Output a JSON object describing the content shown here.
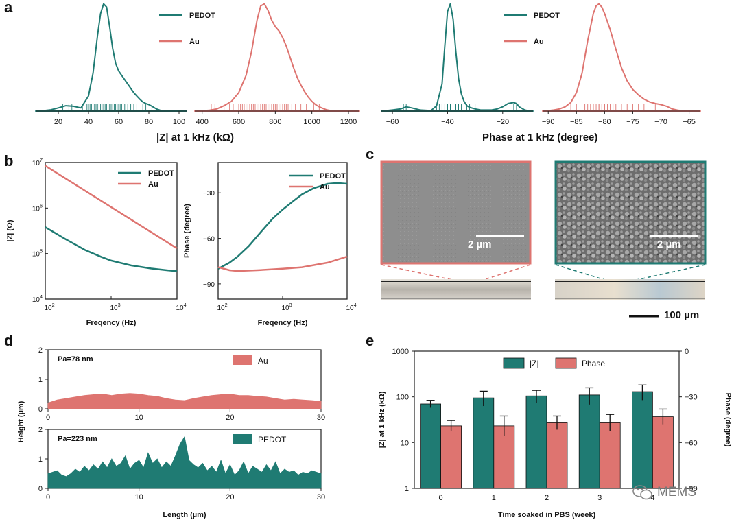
{
  "panels": {
    "a": "a",
    "b": "b",
    "c": "c",
    "d": "d",
    "e": "e"
  },
  "colors": {
    "pedot": "#1f7b73",
    "au": "#de7470",
    "text": "#111111",
    "axis": "#222222"
  },
  "legend": {
    "pedot": "PEDOT",
    "au": "Au",
    "z": "|Z|",
    "phase": "Phase"
  },
  "watermark": "MEMS",
  "chart_data": [
    {
      "id": "a_z_pedot",
      "type": "area",
      "note": "density distribution (kernel density, rug plot beneath)",
      "xlim": [
        5,
        105
      ],
      "xticks": [
        20,
        40,
        60,
        80,
        100
      ],
      "x": [
        5,
        10,
        15,
        20,
        25,
        30,
        35,
        40,
        43,
        46,
        48,
        50,
        52,
        54,
        56,
        58,
        60,
        62,
        64,
        66,
        68,
        70,
        72,
        74,
        76,
        78,
        80,
        82,
        85,
        88,
        90,
        95,
        100,
        105
      ],
      "y": [
        0,
        0.004,
        0.012,
        0.03,
        0.05,
        0.045,
        0.03,
        0.14,
        0.35,
        0.7,
        0.9,
        0.99,
        0.96,
        0.78,
        0.58,
        0.44,
        0.37,
        0.33,
        0.29,
        0.25,
        0.21,
        0.17,
        0.14,
        0.11,
        0.085,
        0.07,
        0.06,
        0.045,
        0.02,
        0.005,
        0.002,
        0,
        0,
        0
      ],
      "rug": [
        23,
        27,
        29,
        36,
        39,
        40,
        41,
        42,
        43,
        44,
        45,
        46,
        47,
        48,
        49,
        50,
        51,
        52,
        53,
        54,
        55,
        56,
        57,
        58,
        59,
        60,
        61,
        62,
        64,
        66,
        68,
        70,
        72,
        76,
        78,
        82
      ]
    },
    {
      "id": "a_z_au",
      "type": "area",
      "xlim": [
        360,
        1260
      ],
      "xticks": [
        400,
        600,
        800,
        1000,
        1200
      ],
      "x": [
        360,
        400,
        440,
        480,
        520,
        560,
        600,
        640,
        670,
        700,
        720,
        740,
        760,
        780,
        800,
        820,
        840,
        860,
        880,
        900,
        920,
        940,
        960,
        980,
        1000,
        1020,
        1040,
        1060,
        1080,
        1100,
        1140,
        1180,
        1220,
        1260
      ],
      "y": [
        0,
        0.003,
        0.008,
        0.02,
        0.05,
        0.09,
        0.17,
        0.33,
        0.55,
        0.84,
        0.97,
        0.99,
        0.93,
        0.84,
        0.78,
        0.74,
        0.68,
        0.6,
        0.5,
        0.4,
        0.31,
        0.24,
        0.18,
        0.13,
        0.09,
        0.06,
        0.04,
        0.025,
        0.012,
        0.006,
        0.002,
        0,
        0,
        0
      ],
      "rug": [
        450,
        470,
        520,
        550,
        570,
        600,
        610,
        620,
        630,
        640,
        650,
        660,
        670,
        680,
        690,
        700,
        710,
        720,
        730,
        740,
        750,
        760,
        770,
        780,
        790,
        800,
        810,
        820,
        830,
        840,
        850,
        860,
        870,
        890,
        910,
        940,
        970,
        1010,
        1040
      ]
    },
    {
      "id": "a_ph_pedot",
      "type": "area",
      "xlim": [
        -64,
        -9
      ],
      "xticks": [
        -60,
        -40,
        -20
      ],
      "x": [
        -64,
        -60,
        -57,
        -55,
        -53,
        -50,
        -46,
        -44,
        -42,
        -41,
        -40,
        -39,
        -38,
        -37,
        -36,
        -35,
        -34,
        -33,
        -32,
        -30,
        -28,
        -26,
        -24,
        -22,
        -20,
        -18,
        -16,
        -15,
        -14,
        -12,
        -10,
        -9
      ],
      "y": [
        0,
        0.01,
        0.02,
        0.04,
        0.03,
        0.01,
        0.005,
        0.05,
        0.25,
        0.6,
        0.92,
        0.99,
        0.85,
        0.55,
        0.3,
        0.16,
        0.09,
        0.05,
        0.035,
        0.02,
        0.01,
        0.01,
        0.01,
        0.02,
        0.04,
        0.07,
        0.08,
        0.07,
        0.04,
        0.01,
        0,
        0
      ],
      "rug": [
        -56,
        -55,
        -44,
        -43,
        -42,
        -41,
        -41,
        -40,
        -40,
        -39,
        -39,
        -38,
        -38,
        -37,
        -37,
        -36,
        -36,
        -35,
        -34,
        -33,
        -32,
        -30,
        -16,
        -15
      ]
    },
    {
      "id": "a_ph_au",
      "type": "area",
      "xlim": [
        -91,
        -63
      ],
      "xticks": [
        -90,
        -85,
        -80,
        -75,
        -70,
        -65
      ],
      "x": [
        -91,
        -90,
        -89,
        -88,
        -87,
        -86,
        -85,
        -84,
        -83,
        -82,
        -81.5,
        -81,
        -80.5,
        -80,
        -79,
        -78,
        -77,
        -76,
        -75,
        -74,
        -73,
        -72,
        -71,
        -70,
        -69,
        -68,
        -67,
        -66,
        -65,
        -63
      ],
      "y": [
        0,
        0.004,
        0.01,
        0.02,
        0.04,
        0.08,
        0.17,
        0.35,
        0.65,
        0.9,
        0.97,
        0.99,
        0.96,
        0.9,
        0.75,
        0.57,
        0.4,
        0.28,
        0.2,
        0.15,
        0.11,
        0.085,
        0.07,
        0.06,
        0.045,
        0.02,
        0.008,
        0.003,
        0,
        0
      ],
      "rug": [
        -86,
        -85,
        -84,
        -84,
        -83.5,
        -83,
        -82.5,
        -82,
        -82,
        -81.5,
        -81,
        -81,
        -80.5,
        -80,
        -80,
        -79.5,
        -79,
        -78.5,
        -78,
        -77,
        -76,
        -75,
        -74,
        -73,
        -71,
        -70
      ]
    },
    {
      "id": "b_mag",
      "type": "line",
      "xscale": "log",
      "yscale": "log",
      "xlim": [
        100,
        10000
      ],
      "ylim": [
        10000,
        10000000
      ],
      "xlabel": "Freqency (Hz)",
      "ylabel": "|Z| (Ω)",
      "series": [
        {
          "name": "PEDOT",
          "x": [
            100,
            200,
            400,
            700,
            1000,
            2000,
            4000,
            7000,
            10000
          ],
          "y": [
            380000,
            210000,
            120000,
            85000,
            70000,
            55000,
            47000,
            43000,
            41000
          ]
        },
        {
          "name": "Au",
          "x": [
            100,
            10000
          ],
          "y": [
            8500000,
            130000
          ]
        }
      ]
    },
    {
      "id": "b_phase",
      "type": "line",
      "xscale": "log",
      "xlim": [
        100,
        10000
      ],
      "ylim": [
        -100,
        -10
      ],
      "yticks": [
        -90,
        -60,
        -30
      ],
      "xlabel": "Freqency (Hz)",
      "ylabel": "Phase (degree)",
      "series": [
        {
          "name": "PEDOT",
          "x": [
            100,
            150,
            200,
            300,
            500,
            700,
            1000,
            1500,
            2000,
            3000,
            5000,
            7000,
            10000
          ],
          "y": [
            -80,
            -76,
            -72,
            -65,
            -54,
            -47,
            -41,
            -35,
            -31,
            -27,
            -24,
            -23.5,
            -24
          ]
        },
        {
          "name": "Au",
          "x": [
            100,
            150,
            200,
            400,
            1000,
            2000,
            5000,
            10000
          ],
          "y": [
            -79,
            -81,
            -81.5,
            -81,
            -80,
            -79,
            -76,
            -72
          ]
        }
      ]
    },
    {
      "id": "d_au",
      "type": "area",
      "xlim": [
        0,
        30
      ],
      "ylim": [
        0,
        2
      ],
      "yticks": [
        0,
        1,
        2
      ],
      "xticks": [
        0,
        10,
        20,
        30
      ],
      "annotation": "Pa=78 nm",
      "series_name": "Au",
      "x": [
        0,
        1,
        2,
        3,
        4,
        5,
        6,
        7,
        8,
        9,
        10,
        11,
        12,
        13,
        14,
        15,
        16,
        17,
        18,
        19,
        20,
        21,
        22,
        23,
        24,
        25,
        26,
        27,
        28,
        29,
        30
      ],
      "y": [
        0.2,
        0.3,
        0.35,
        0.4,
        0.45,
        0.48,
        0.5,
        0.45,
        0.5,
        0.52,
        0.5,
        0.45,
        0.42,
        0.35,
        0.3,
        0.28,
        0.35,
        0.4,
        0.45,
        0.48,
        0.5,
        0.45,
        0.45,
        0.42,
        0.4,
        0.35,
        0.3,
        0.32,
        0.3,
        0.28,
        0.25
      ]
    },
    {
      "id": "d_pedot",
      "type": "area",
      "xlim": [
        0,
        30
      ],
      "ylim": [
        0,
        2
      ],
      "yticks": [
        0,
        1,
        2
      ],
      "xticks": [
        0,
        10,
        20,
        30
      ],
      "annotation": "Pa=223 nm",
      "series_name": "PEDOT",
      "xlabel": "Length (µm)",
      "ylabel": "Height (µm)",
      "x": [
        0,
        0.5,
        1,
        1.5,
        2,
        2.5,
        3,
        3.5,
        4,
        4.5,
        5,
        5.5,
        6,
        6.5,
        7,
        7.5,
        8,
        8.5,
        9,
        9.5,
        10,
        10.5,
        11,
        11.5,
        12,
        12.5,
        13,
        13.5,
        14,
        14.5,
        15,
        15.5,
        16,
        16.5,
        17,
        17.5,
        18,
        18.5,
        19,
        19.5,
        20,
        20.5,
        21,
        21.5,
        22,
        22.5,
        23,
        23.5,
        24,
        24.5,
        25,
        25.5,
        26,
        26.5,
        27,
        27.5,
        28,
        28.5,
        29,
        29.5,
        30
      ],
      "y": [
        0.5,
        0.55,
        0.6,
        0.45,
        0.4,
        0.5,
        0.65,
        0.55,
        0.75,
        0.6,
        0.8,
        0.65,
        0.9,
        0.7,
        1.0,
        0.75,
        0.85,
        1.1,
        0.65,
        0.85,
        0.95,
        0.7,
        1.2,
        0.85,
        1.0,
        0.7,
        0.9,
        0.75,
        1.1,
        1.5,
        1.75,
        0.95,
        0.8,
        0.7,
        0.85,
        0.6,
        0.75,
        0.55,
        0.95,
        0.5,
        0.8,
        0.45,
        0.6,
        0.9,
        0.5,
        0.75,
        0.65,
        0.55,
        0.8,
        0.6,
        0.9,
        0.5,
        0.65,
        0.55,
        0.6,
        0.45,
        0.55,
        0.5,
        0.6,
        0.55,
        0.5
      ]
    },
    {
      "id": "e_stability",
      "type": "bar",
      "categories": [
        "0",
        "1",
        "2",
        "3",
        "4"
      ],
      "xlabel": "Time soaked in PBS (week)",
      "ylabel": "|Z| at 1 kHz (kΩ)",
      "ylabel_right": "Phase (degree)",
      "ylim": [
        1,
        1000
      ],
      "yscale": "log",
      "ylim_right": [
        -90,
        0
      ],
      "yticks_right": [
        0,
        -30,
        -60,
        -90
      ],
      "series": [
        {
          "name": "|Z|",
          "axis": "left",
          "values": [
            70,
            95,
            105,
            110,
            130
          ],
          "err_low": [
            12,
            32,
            32,
            42,
            45
          ],
          "err_high": [
            14,
            38,
            34,
            48,
            52
          ]
        },
        {
          "name": "Phase",
          "axis": "right",
          "values": [
            -49,
            -49,
            -47,
            -47,
            -43
          ],
          "err": [
            3.5,
            6.5,
            4.5,
            5.5,
            5.0
          ]
        }
      ]
    }
  ],
  "text": {
    "a_xlabel_z": "|Z| at 1 kHz (kΩ)",
    "a_xlabel_ph": "Phase at 1 kHz (degree)",
    "b_xlabel_left": "Freqency (Hz)",
    "b_xlabel_right": "Freqency (Hz)",
    "b_ylabel_left": "|Z| (Ω)",
    "b_ylabel_right": "Phase (degree)",
    "c_scale_left": "2 µm",
    "c_scale_right": "2 µm",
    "c_scale_bottom": "100 µm",
    "d_xlabel": "Length (µm)",
    "d_ylabel": "Height (µm)",
    "d_ann_au": "Pa=78 nm",
    "d_ann_pedot": "Pa=223 nm",
    "e_xlabel": "Time soaked in PBS (week)",
    "e_ylabel": "|Z| at 1 kHz (kΩ)",
    "e_ylabel_right": "Phase (degree)"
  }
}
